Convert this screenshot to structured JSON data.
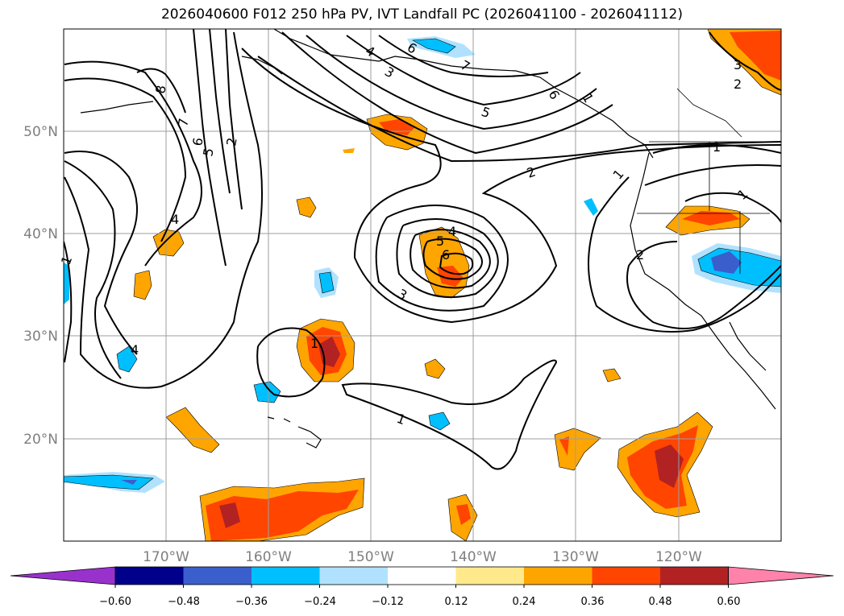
{
  "title": "2026040600 F012 250 hPa PV, IVT Landfall PC (2026041100 - 2026041112)",
  "map": {
    "lat_labels": [
      "50°N",
      "40°N",
      "30°N",
      "20°N"
    ],
    "lon_labels": [
      "170°W",
      "160°W",
      "150°W",
      "140°W",
      "130°W",
      "120°W"
    ],
    "gridlines": true,
    "extent": {
      "lon": [
        -180,
        -110
      ],
      "lat": [
        10,
        60
      ]
    }
  },
  "contours": {
    "color": "#000000",
    "labels": [
      "8",
      "7",
      "6",
      "5",
      "2",
      "4",
      "1",
      "4",
      "1",
      "3",
      "4",
      "6",
      "6",
      "7",
      "5",
      "2",
      "1",
      "4",
      "5",
      "6",
      "3",
      "1",
      "2",
      "1",
      "3",
      "2",
      "1",
      "1"
    ]
  },
  "colorbar": {
    "ticks": [
      "−0.60",
      "−0.48",
      "−0.36",
      "−0.24",
      "−0.12",
      "0.12",
      "0.24",
      "0.36",
      "0.48",
      "0.60"
    ],
    "colors": [
      "#9932cc",
      "#00008b",
      "#3a5fcd",
      "#00bfff",
      "#b0e2ff",
      "#ffffff",
      "#ffe98a",
      "#ffa500",
      "#ff4500",
      "#b22222",
      "#ff82ab"
    ],
    "extend": "both"
  }
}
